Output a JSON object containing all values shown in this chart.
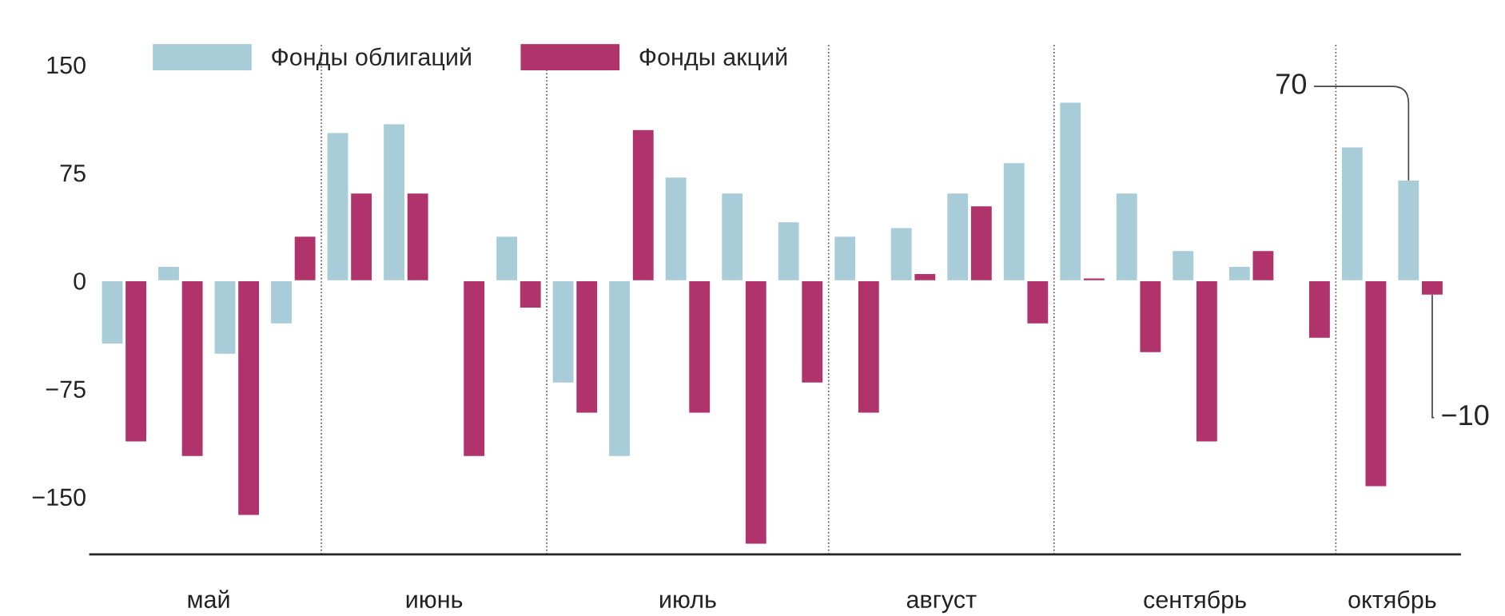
{
  "chart_data": {
    "type": "bar",
    "categories": [
      null,
      null,
      null,
      null,
      null,
      null,
      null,
      null,
      null,
      null,
      null,
      null,
      null,
      null,
      null,
      null,
      null,
      null,
      null,
      null,
      null,
      null,
      null,
      null
    ],
    "series": [
      {
        "name": "Фонды облигаций",
        "color": "#a9cdd8",
        "values": [
          -44,
          10,
          -51,
          -30,
          103,
          109,
          null,
          31,
          -71,
          -122,
          72,
          61,
          41,
          31,
          37,
          61,
          82,
          124,
          61,
          21,
          10,
          null,
          93,
          70
        ]
      },
      {
        "name": "Фонды акций",
        "color": "#b0336b",
        "values": [
          -112,
          -122,
          -163,
          31,
          61,
          61,
          -122,
          -19,
          -92,
          105,
          -92,
          -183,
          -71,
          -92,
          5,
          52,
          -30,
          2,
          -50,
          -112,
          21,
          -40,
          -143,
          -10
        ]
      }
    ],
    "ylim": [
      -190,
      165
    ],
    "yticks": [
      150,
      75,
      0,
      {
        "value": -75,
        "label": "−75"
      },
      {
        "value": -150,
        "label": "−150"
      }
    ],
    "annotations": [
      "май",
      "июнь",
      "июль",
      "август",
      "сентябрь",
      "октябрь",
      "70",
      "−10"
    ],
    "legend": "top left",
    "grid": false
  }
}
